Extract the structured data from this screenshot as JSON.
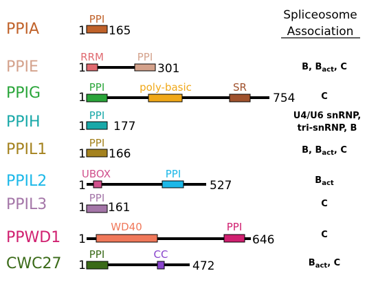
{
  "header": {
    "line1": "Spliceosome",
    "line2": "Association"
  },
  "start_label": "1",
  "colors": {
    "PPIA": "#c0622a",
    "PPIE": "#d4a28c",
    "PPIG": "#2aa53a",
    "PPIH": "#18a8a8",
    "PPIL1": "#a4821e",
    "PPIL2": "#1cb8e8",
    "PPIL3": "#a476a8",
    "PPWD1": "#d02070",
    "CWC27": "#3a6a18",
    "RRM": "#e06a70",
    "poly-basic": "#f0a818",
    "SR": "#a0522d",
    "UBOX": "#d0508c",
    "WD40": "#f0785a",
    "CC": "#8844cc"
  },
  "proteins": [
    {
      "name": "PPIA",
      "length_label": "165",
      "domains": [
        {
          "label": "PPI"
        }
      ],
      "association": []
    },
    {
      "name": "PPIE",
      "length_label": "301",
      "domains": [
        {
          "label": "RRM"
        },
        {
          "label": "PPI"
        }
      ],
      "association": [
        "B, B",
        "act",
        ", C"
      ]
    },
    {
      "name": "PPIG",
      "length_label": "754",
      "domains": [
        {
          "label": "PPI"
        },
        {
          "label": "poly-basic"
        },
        {
          "label": "SR"
        }
      ],
      "association": [
        "C"
      ]
    },
    {
      "name": "PPIH",
      "length_label": "177",
      "domains": [
        {
          "label": "PPI"
        }
      ],
      "association": [
        "U4/U6 snRNP,",
        "tri-snRNP, B"
      ]
    },
    {
      "name": "PPIL1",
      "length_label": "166",
      "domains": [
        {
          "label": "PPI"
        }
      ],
      "association": [
        "B, B",
        "act",
        ", C"
      ]
    },
    {
      "name": "PPIL2",
      "length_label": "527",
      "domains": [
        {
          "label": "UBOX"
        },
        {
          "label": "PPI"
        }
      ],
      "association": [
        "B",
        "act"
      ]
    },
    {
      "name": "PPIL3",
      "length_label": "161",
      "domains": [
        {
          "label": "PPI"
        }
      ],
      "association": [
        "C"
      ]
    },
    {
      "name": "PPWD1",
      "length_label": "646",
      "domains": [
        {
          "label": "WD40"
        },
        {
          "label": "PPI"
        }
      ],
      "association": [
        "C"
      ]
    },
    {
      "name": "CWC27",
      "length_label": "472",
      "domains": [
        {
          "label": "PPI"
        },
        {
          "label": "CC"
        }
      ],
      "association": [
        "B",
        "act",
        ", C"
      ]
    }
  ]
}
